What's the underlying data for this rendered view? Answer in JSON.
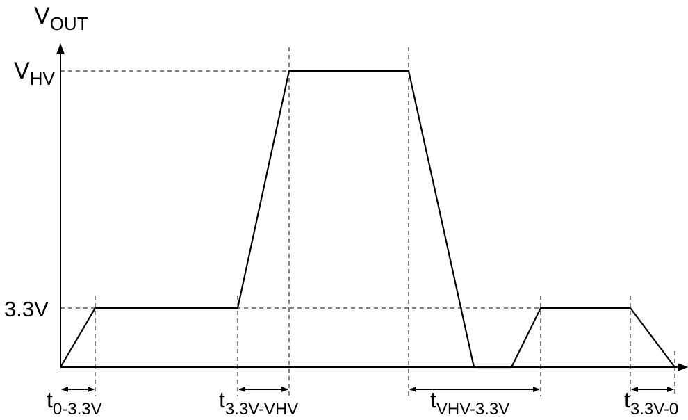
{
  "diagram": {
    "y_axis_label": {
      "main": "V",
      "sub": "OUT"
    },
    "level_high_label": {
      "main": "V",
      "sub": "HV"
    },
    "level_low_label": "3.3V",
    "intervals": [
      {
        "main": "t",
        "sub": "0-3.3V"
      },
      {
        "main": "t",
        "sub": "3.3V-VHV"
      },
      {
        "main": "t",
        "sub": "VHV-3.3V"
      },
      {
        "main": "t",
        "sub": "3.3V-0"
      }
    ],
    "colors": {
      "line": "#000000",
      "background": "#ffffff"
    }
  }
}
